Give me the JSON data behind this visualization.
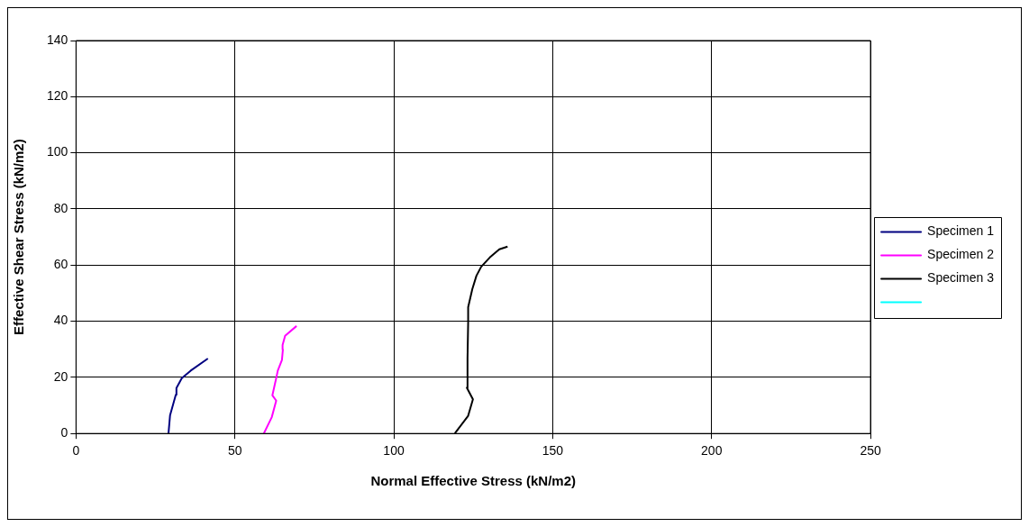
{
  "chart_data": {
    "type": "line",
    "xlabel": "Normal Effective Stress (kN/m2)",
    "ylabel": "Effective Shear Stress (kN/m2)",
    "xlim": [
      0,
      250
    ],
    "xticks": [
      0,
      50,
      100,
      150,
      200,
      250
    ],
    "ylim": [
      0,
      140
    ],
    "yticks": [
      0,
      20,
      40,
      60,
      80,
      100,
      120,
      140
    ],
    "grid": true,
    "legend": "right",
    "marker": "none",
    "line_style": "solid",
    "series": [
      {
        "name": "Specimen 1",
        "color": "#000080",
        "x": [
          29.1,
          29.6,
          31.4,
          31.6,
          33.3,
          36.1,
          41.5
        ],
        "values": [
          0,
          6.5,
          13.8,
          16.2,
          19.7,
          22.4,
          26.7
        ]
      },
      {
        "name": "Specimen 2",
        "color": "#ff00ff",
        "x": [
          59.1,
          61.6,
          63.0,
          61.8,
          63.0,
          63.5,
          64.8,
          65.1,
          65.0,
          65.8,
          69.4
        ],
        "values": [
          0,
          5.8,
          11.7,
          13.6,
          19.7,
          22.4,
          26.2,
          29.9,
          31.5,
          34.8,
          38.3
        ]
      },
      {
        "name": "Specimen 3",
        "color": "#000000",
        "x": [
          119.2,
          123.4,
          124.9,
          123.0,
          123.2,
          123.4,
          123.4,
          124.7,
          126.0,
          127.5,
          130.2,
          133.2,
          135.8
        ],
        "values": [
          0,
          6.3,
          12.2,
          16.3,
          26.7,
          39.6,
          45.0,
          51.4,
          56.2,
          59.4,
          62.7,
          65.6,
          66.6
        ]
      },
      {
        "color": "#00ffff"
      }
    ]
  }
}
